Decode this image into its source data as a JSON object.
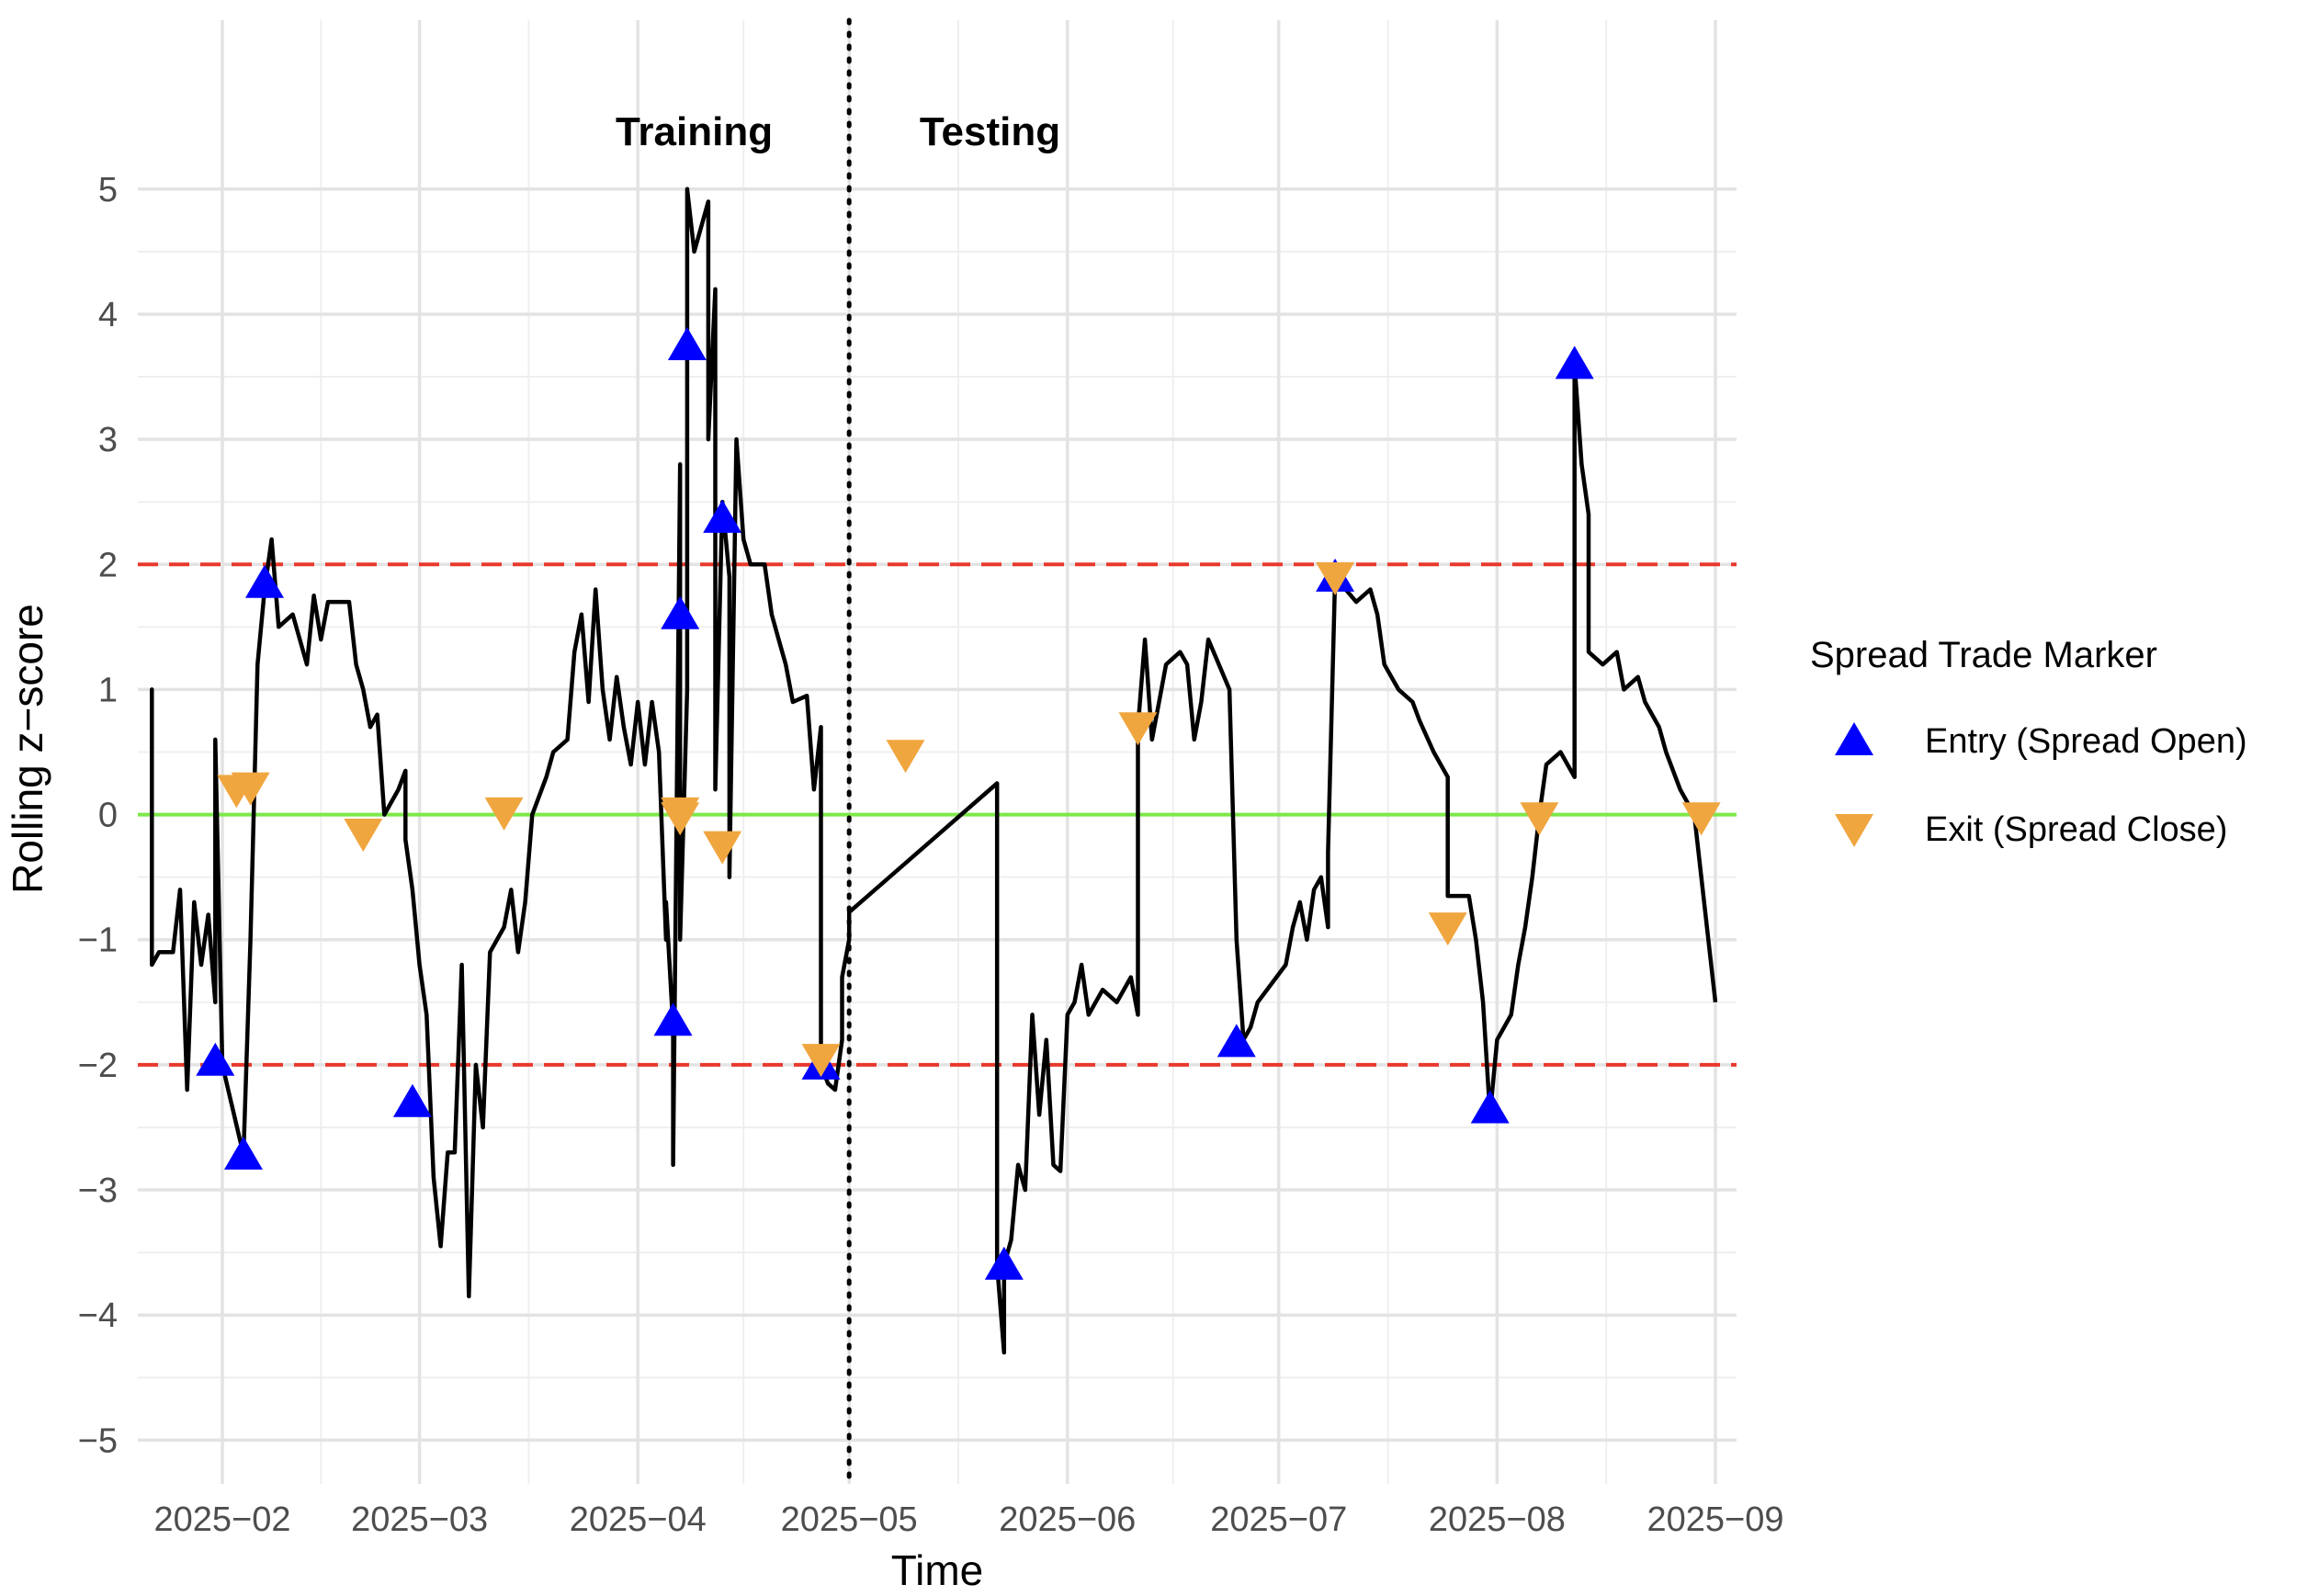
{
  "chart_data": {
    "type": "line",
    "xlabel": "Time",
    "ylabel": "Rolling z−score",
    "ylim": [
      -5.35,
      6.35
    ],
    "xlim": [
      "2025-01-20",
      "2025-09-04"
    ],
    "y_ticks": [
      {
        "value": 5,
        "label": "5"
      },
      {
        "value": 4,
        "label": "4"
      },
      {
        "value": 3,
        "label": "3"
      },
      {
        "value": 2,
        "label": "2"
      },
      {
        "value": 1,
        "label": "1"
      },
      {
        "value": 0,
        "label": "0"
      },
      {
        "value": -1,
        "label": "−1"
      },
      {
        "value": -2,
        "label": "−2"
      },
      {
        "value": -3,
        "label": "−3"
      },
      {
        "value": -4,
        "label": "−4"
      },
      {
        "value": -5,
        "label": "−5"
      }
    ],
    "x_ticks": [
      {
        "date": "2025-02-01",
        "label": "2025−02"
      },
      {
        "date": "2025-03-01",
        "label": "2025−03"
      },
      {
        "date": "2025-04-01",
        "label": "2025−04"
      },
      {
        "date": "2025-05-01",
        "label": "2025−05"
      },
      {
        "date": "2025-06-01",
        "label": "2025−06"
      },
      {
        "date": "2025-07-01",
        "label": "2025−07"
      },
      {
        "date": "2025-08-01",
        "label": "2025−08"
      },
      {
        "date": "2025-09-01",
        "label": "2025−09"
      }
    ],
    "grid": true,
    "reference_lines": [
      {
        "y": 2,
        "color": "#e8392c",
        "style": "dashed"
      },
      {
        "y": -2,
        "color": "#e8392c",
        "style": "dashed"
      },
      {
        "y": 0,
        "color": "#7de84a",
        "style": "solid"
      }
    ],
    "split_line": {
      "date": "2025-05-01",
      "style": "dotted",
      "color": "#000000"
    },
    "phase_labels": [
      {
        "text": "Training",
        "date": "2025-04-09",
        "y": 5.35
      },
      {
        "text": "Testing",
        "date": "2025-05-21",
        "y": 5.35
      }
    ],
    "series": [
      {
        "color": "#000000",
        "points": [
          [
            "2025-01-22",
            0.7
          ],
          [
            "2025-01-22",
            1.0
          ],
          [
            "2025-01-22",
            -1.2
          ],
          [
            "2025-01-23",
            -1.1
          ],
          [
            "2025-01-25",
            -1.1
          ],
          [
            "2025-01-26",
            -0.6
          ],
          [
            "2025-01-27",
            -2.2
          ],
          [
            "2025-01-28",
            -0.7
          ],
          [
            "2025-01-29",
            -1.2
          ],
          [
            "2025-01-30",
            -0.8
          ],
          [
            "2025-01-31",
            -1.5
          ],
          [
            "2025-01-31",
            0.6
          ],
          [
            "2025-02-01",
            -2.0
          ],
          [
            "2025-02-04",
            -2.72
          ],
          [
            "2025-02-05",
            -1.0
          ],
          [
            "2025-02-06",
            1.2
          ],
          [
            "2025-02-07",
            1.8
          ],
          [
            "2025-02-08",
            2.2
          ],
          [
            "2025-02-09",
            1.5
          ],
          [
            "2025-02-11",
            1.6
          ],
          [
            "2025-02-13",
            1.2
          ],
          [
            "2025-02-14",
            1.75
          ],
          [
            "2025-02-15",
            1.4
          ],
          [
            "2025-02-16",
            1.7
          ],
          [
            "2025-02-19",
            1.7
          ],
          [
            "2025-02-20",
            1.2
          ],
          [
            "2025-02-21",
            1.0
          ],
          [
            "2025-02-22",
            0.7
          ],
          [
            "2025-02-23",
            0.8
          ],
          [
            "2025-02-24",
            0.0
          ],
          [
            "2025-02-26",
            0.2
          ],
          [
            "2025-02-27",
            0.35
          ],
          [
            "2025-02-27",
            -0.2
          ],
          [
            "2025-02-28",
            -0.6
          ],
          [
            "2025-03-01",
            -1.2
          ],
          [
            "2025-03-02",
            -1.6
          ],
          [
            "2025-03-03",
            -2.9
          ],
          [
            "2025-03-04",
            -3.45
          ],
          [
            "2025-03-05",
            -2.7
          ],
          [
            "2025-03-06",
            -2.7
          ],
          [
            "2025-03-07",
            -1.2
          ],
          [
            "2025-03-08",
            -3.85
          ],
          [
            "2025-03-09",
            -2.0
          ],
          [
            "2025-03-10",
            -2.5
          ],
          [
            "2025-03-11",
            -1.1
          ],
          [
            "2025-03-13",
            -0.9
          ],
          [
            "2025-03-14",
            -0.6
          ],
          [
            "2025-03-15",
            -1.1
          ],
          [
            "2025-03-16",
            -0.7
          ],
          [
            "2025-03-17",
            0.0
          ],
          [
            "2025-03-19",
            0.3
          ],
          [
            "2025-03-20",
            0.5
          ],
          [
            "2025-03-22",
            0.6
          ],
          [
            "2025-03-23",
            1.3
          ],
          [
            "2025-03-24",
            1.6
          ],
          [
            "2025-03-25",
            0.9
          ],
          [
            "2025-03-26",
            1.8
          ],
          [
            "2025-03-27",
            1.0
          ],
          [
            "2025-03-28",
            0.6
          ],
          [
            "2025-03-29",
            1.1
          ],
          [
            "2025-03-30",
            0.7
          ],
          [
            "2025-03-31",
            0.4
          ],
          [
            "2025-04-01",
            0.9
          ],
          [
            "2025-04-02",
            0.4
          ],
          [
            "2025-04-03",
            0.9
          ],
          [
            "2025-04-04",
            0.5
          ],
          [
            "2025-04-05",
            -1.0
          ],
          [
            "2025-04-05",
            -0.7
          ],
          [
            "2025-04-06",
            -1.7
          ],
          [
            "2025-04-06",
            -2.8
          ],
          [
            "2025-04-07",
            2.8
          ],
          [
            "2025-04-07",
            -1.0
          ],
          [
            "2025-04-08",
            1.0
          ],
          [
            "2025-04-08",
            5.0
          ],
          [
            "2025-04-09",
            4.5
          ],
          [
            "2025-04-11",
            4.9
          ],
          [
            "2025-04-11",
            3.0
          ],
          [
            "2025-04-12",
            4.2
          ],
          [
            "2025-04-12",
            0.2
          ],
          [
            "2025-04-13",
            2.5
          ],
          [
            "2025-04-14",
            1.9
          ],
          [
            "2025-04-14",
            -0.5
          ],
          [
            "2025-04-15",
            3.0
          ],
          [
            "2025-04-16",
            2.2
          ],
          [
            "2025-04-17",
            2.0
          ],
          [
            "2025-04-19",
            2.0
          ],
          [
            "2025-04-20",
            1.6
          ],
          [
            "2025-04-21",
            1.4
          ],
          [
            "2025-04-22",
            1.2
          ],
          [
            "2025-04-23",
            0.9
          ],
          [
            "2025-04-25",
            0.95
          ],
          [
            "2025-04-26",
            0.2
          ],
          [
            "2025-04-27",
            0.7
          ],
          [
            "2025-04-27",
            -2.0
          ],
          [
            "2025-04-28",
            -2.15
          ],
          [
            "2025-04-29",
            -2.2
          ],
          [
            "2025-04-30",
            -1.8
          ],
          [
            "2025-04-30",
            -1.3
          ],
          [
            "2025-05-01",
            -1.0
          ],
          [
            "2025-05-01",
            -0.78
          ],
          [
            "2025-05-22",
            0.25
          ],
          [
            "2025-05-22",
            -3.6
          ],
          [
            "2025-05-23",
            -4.3
          ],
          [
            "2025-05-23",
            -3.6
          ],
          [
            "2025-05-24",
            -3.4
          ],
          [
            "2025-05-25",
            -2.8
          ],
          [
            "2025-05-26",
            -3.0
          ],
          [
            "2025-05-27",
            -1.6
          ],
          [
            "2025-05-28",
            -2.4
          ],
          [
            "2025-05-29",
            -1.8
          ],
          [
            "2025-05-30",
            -2.8
          ],
          [
            "2025-05-31",
            -2.85
          ],
          [
            "2025-06-01",
            -1.6
          ],
          [
            "2025-06-02",
            -1.5
          ],
          [
            "2025-06-03",
            -1.2
          ],
          [
            "2025-06-04",
            -1.6
          ],
          [
            "2025-06-06",
            -1.4
          ],
          [
            "2025-06-08",
            -1.5
          ],
          [
            "2025-06-10",
            -1.3
          ],
          [
            "2025-06-11",
            -1.6
          ],
          [
            "2025-06-11",
            0.7
          ],
          [
            "2025-06-12",
            1.4
          ],
          [
            "2025-06-13",
            0.6
          ],
          [
            "2025-06-14",
            0.9
          ],
          [
            "2025-06-15",
            1.2
          ],
          [
            "2025-06-17",
            1.3
          ],
          [
            "2025-06-18",
            1.2
          ],
          [
            "2025-06-19",
            0.6
          ],
          [
            "2025-06-20",
            0.9
          ],
          [
            "2025-06-21",
            1.4
          ],
          [
            "2025-06-24",
            1.0
          ],
          [
            "2025-06-25",
            -1.0
          ],
          [
            "2025-06-26",
            -1.8
          ],
          [
            "2025-06-27",
            -1.7
          ],
          [
            "2025-06-28",
            -1.5
          ],
          [
            "2025-07-02",
            -1.2
          ],
          [
            "2025-07-03",
            -0.9
          ],
          [
            "2025-07-04",
            -0.7
          ],
          [
            "2025-07-05",
            -1.0
          ],
          [
            "2025-07-06",
            -0.6
          ],
          [
            "2025-07-07",
            -0.5
          ],
          [
            "2025-07-08",
            -0.9
          ],
          [
            "2025-07-08",
            -0.3
          ],
          [
            "2025-07-09",
            1.9
          ],
          [
            "2025-07-12",
            1.7
          ],
          [
            "2025-07-14",
            1.8
          ],
          [
            "2025-07-15",
            1.6
          ],
          [
            "2025-07-16",
            1.2
          ],
          [
            "2025-07-18",
            1.0
          ],
          [
            "2025-07-20",
            0.9
          ],
          [
            "2025-07-21",
            0.75
          ],
          [
            "2025-07-23",
            0.5
          ],
          [
            "2025-07-25",
            0.3
          ],
          [
            "2025-07-25",
            -0.65
          ],
          [
            "2025-07-28",
            -0.65
          ],
          [
            "2025-07-29",
            -1.0
          ],
          [
            "2025-07-30",
            -1.5
          ],
          [
            "2025-07-31",
            -2.4
          ],
          [
            "2025-08-01",
            -1.8
          ],
          [
            "2025-08-03",
            -1.6
          ],
          [
            "2025-08-04",
            -1.2
          ],
          [
            "2025-08-05",
            -0.9
          ],
          [
            "2025-08-06",
            -0.5
          ],
          [
            "2025-08-07",
            0.0
          ],
          [
            "2025-08-08",
            0.4
          ],
          [
            "2025-08-10",
            0.5
          ],
          [
            "2025-08-12",
            0.3
          ],
          [
            "2025-08-12",
            3.6
          ],
          [
            "2025-08-13",
            2.8
          ],
          [
            "2025-08-14",
            2.4
          ],
          [
            "2025-08-14",
            1.3
          ],
          [
            "2025-08-16",
            1.2
          ],
          [
            "2025-08-18",
            1.3
          ],
          [
            "2025-08-19",
            1.0
          ],
          [
            "2025-08-21",
            1.1
          ],
          [
            "2025-08-22",
            0.9
          ],
          [
            "2025-08-24",
            0.7
          ],
          [
            "2025-08-25",
            0.5
          ],
          [
            "2025-08-27",
            0.2
          ],
          [
            "2025-08-29",
            0.0
          ],
          [
            "2025-09-01",
            -1.5
          ]
        ]
      }
    ],
    "markers": {
      "entry": [
        [
          "2025-01-31",
          -1.97
        ],
        [
          "2025-02-04",
          -2.72
        ],
        [
          "2025-02-07",
          1.85
        ],
        [
          "2025-02-28",
          -2.3
        ],
        [
          "2025-04-06",
          -1.65
        ],
        [
          "2025-04-07",
          1.6
        ],
        [
          "2025-04-08",
          3.75
        ],
        [
          "2025-04-13",
          2.37
        ],
        [
          "2025-04-27",
          -2.0
        ],
        [
          "2025-05-23",
          -3.6
        ],
        [
          "2025-06-25",
          -1.82
        ],
        [
          "2025-07-09",
          1.9
        ],
        [
          "2025-07-31",
          -2.35
        ],
        [
          "2025-08-12",
          3.6
        ]
      ],
      "exit": [
        [
          "2025-02-03",
          0.2
        ],
        [
          "2025-02-05",
          0.22
        ],
        [
          "2025-02-21",
          -0.15
        ],
        [
          "2025-03-13",
          0.02
        ],
        [
          "2025-04-07",
          0.02
        ],
        [
          "2025-04-07",
          -0.02
        ],
        [
          "2025-04-13",
          -0.25
        ],
        [
          "2025-04-27",
          -1.95
        ],
        [
          "2025-05-09",
          0.48
        ],
        [
          "2025-06-11",
          0.7
        ],
        [
          "2025-07-09",
          1.9
        ],
        [
          "2025-07-25",
          -0.9
        ],
        [
          "2025-08-07",
          -0.02
        ],
        [
          "2025-08-30",
          -0.02
        ]
      ]
    },
    "legend": {
      "title": "Spread Trade Marker",
      "position": "right",
      "entries": [
        {
          "label": "Entry (Spread Open)",
          "shape": "triangle-up",
          "color": "#0000ff"
        },
        {
          "label": "Exit (Spread Close)",
          "shape": "triangle-down",
          "color": "#f0a63f"
        }
      ]
    }
  }
}
